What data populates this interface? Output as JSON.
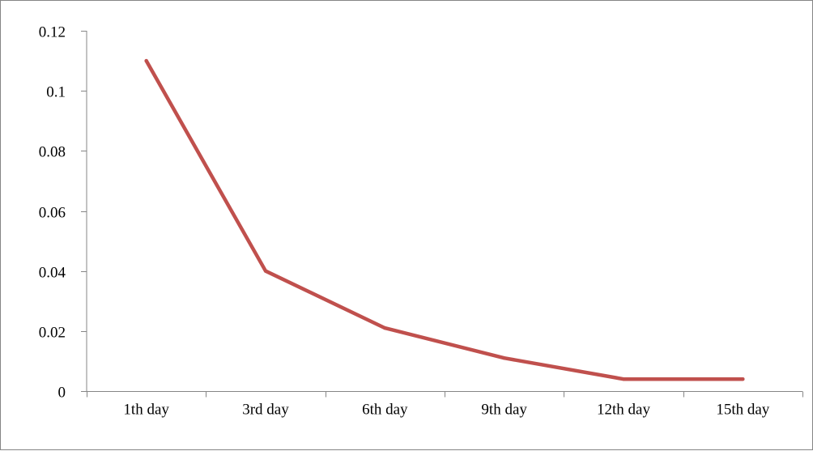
{
  "chart_data": {
    "type": "line",
    "title": "",
    "xlabel": "",
    "ylabel": "",
    "categories": [
      "1th day",
      "3rd day",
      "6th day",
      "9th day",
      "12th day",
      "15th day"
    ],
    "series": [
      {
        "values": [
          0.11,
          0.04,
          0.021,
          0.011,
          0.004,
          0.004
        ],
        "color": "#C0504D"
      }
    ],
    "ylim": [
      0,
      0.12
    ],
    "yticks": [
      0,
      0.02,
      0.04,
      0.06,
      0.08,
      0.1,
      0.12
    ],
    "ytick_labels": [
      "0",
      "0.02",
      "0.04",
      "0.06",
      "0.08",
      "0.1",
      "0.12"
    ],
    "grid": false,
    "legend": "none",
    "axis_color": "#868686"
  }
}
